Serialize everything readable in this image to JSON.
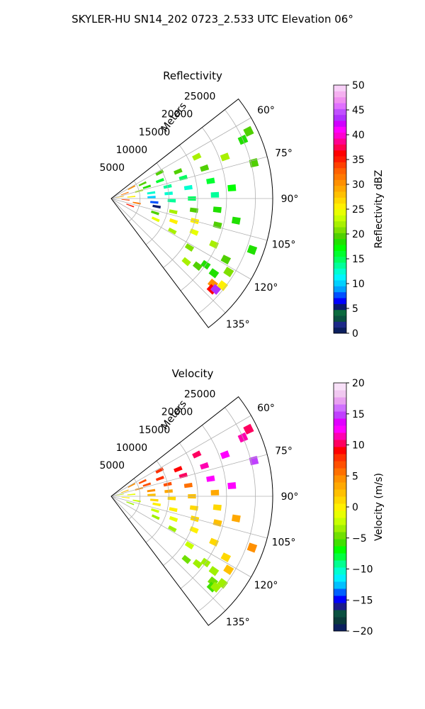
{
  "suptitle": "SKYLER-HU  SN14_202  0723_2.533 UTC Elevation 06°",
  "chart_data": [
    {
      "type": "heatmap",
      "projection": "polar-sector",
      "title": "Reflectivity",
      "radial_label": "Meters",
      "radial_ticks": [
        5000,
        10000,
        15000,
        20000,
        25000
      ],
      "radial_tick_labels": [
        "5000",
        "10000",
        "15000",
        "20000",
        "25000"
      ],
      "r_lim": [
        0,
        28000
      ],
      "theta_ticks": [
        60,
        75,
        90,
        105,
        120,
        135
      ],
      "theta_tick_labels": [
        "60°",
        "75°",
        "90°",
        "105°",
        "120°",
        "135°"
      ],
      "theta_lim": [
        52,
        143
      ],
      "grid": true,
      "colorbar": {
        "label": "Reflectivity dBZ",
        "range": [
          0,
          50
        ],
        "ticks": [
          0,
          5,
          10,
          15,
          20,
          25,
          30,
          35,
          40,
          45,
          50
        ],
        "tick_labels": [
          "0",
          "5",
          "10",
          "15",
          "20",
          "25",
          "30",
          "35",
          "40",
          "45",
          "50"
        ],
        "colors": [
          "#0b1f5e",
          "#1d2a88",
          "#0a5040",
          "#0b6a3e",
          "#0a1a6e",
          "#0000ff",
          "#0050ff",
          "#00a0ff",
          "#00d0ff",
          "#00f5ff",
          "#00ffd0",
          "#00ff9a",
          "#00ff60",
          "#00ff30",
          "#00ff00",
          "#20e000",
          "#50d000",
          "#80e000",
          "#a8f000",
          "#c8ff00",
          "#e8ff00",
          "#fff000",
          "#ffd800",
          "#ffc000",
          "#ffa800",
          "#ff9000",
          "#ff7800",
          "#ff6000",
          "#ff4000",
          "#ff1a00",
          "#ff0000",
          "#ff0050",
          "#ff0090",
          "#ff00d0",
          "#ff00ff",
          "#d000ff",
          "#b030ff",
          "#c050ff",
          "#e070ff",
          "#f090f0",
          "#f5b0f0",
          "#f8d0f8"
        ]
      },
      "gates": {
        "description_of_fields": "range_m, azimuth_deg, dbz",
        "points": [
          [
            1500,
            80,
            28
          ],
          [
            2500,
            70,
            32
          ],
          [
            2500,
            95,
            34
          ],
          [
            3500,
            85,
            26
          ],
          [
            3500,
            110,
            35
          ],
          [
            4000,
            62,
            30
          ],
          [
            4500,
            100,
            31
          ],
          [
            5000,
            75,
            22
          ],
          [
            6000,
            65,
            20
          ],
          [
            6500,
            72,
            18
          ],
          [
            7000,
            82,
            12
          ],
          [
            7000,
            88,
            10
          ],
          [
            7500,
            95,
            8
          ],
          [
            8000,
            100,
            5
          ],
          [
            8000,
            108,
            20
          ],
          [
            8500,
            115,
            24
          ],
          [
            9000,
            70,
            16
          ],
          [
            9500,
            62,
            20
          ],
          [
            10000,
            78,
            14
          ],
          [
            10000,
            85,
            12
          ],
          [
            10500,
            92,
            14
          ],
          [
            11000,
            102,
            22
          ],
          [
            11500,
            110,
            26
          ],
          [
            12000,
            118,
            22
          ],
          [
            12500,
            68,
            20
          ],
          [
            13000,
            74,
            15
          ],
          [
            13500,
            82,
            13
          ],
          [
            14000,
            90,
            15
          ],
          [
            14500,
            98,
            20
          ],
          [
            15000,
            105,
            25
          ],
          [
            15500,
            112,
            24
          ],
          [
            16000,
            122,
            21
          ],
          [
            16500,
            64,
            22
          ],
          [
            17000,
            72,
            20
          ],
          [
            17500,
            80,
            16
          ],
          [
            18000,
            88,
            14
          ],
          [
            18500,
            96,
            18
          ],
          [
            19000,
            104,
            20
          ],
          [
            19500,
            114,
            22
          ],
          [
            20000,
            125,
            19
          ],
          [
            21000,
            70,
            22
          ],
          [
            21000,
            85,
            17
          ],
          [
            22000,
            100,
            18
          ],
          [
            22500,
            118,
            20
          ],
          [
            23000,
            130,
            30
          ],
          [
            23500,
            132,
            36
          ],
          [
            24000,
            131,
            44
          ],
          [
            24500,
            128,
            26
          ],
          [
            25000,
            66,
            18
          ],
          [
            25500,
            76,
            20
          ],
          [
            26000,
            110,
            18
          ],
          [
            26500,
            64,
            20
          ],
          [
            24000,
            122,
            21
          ],
          [
            22000,
            126,
            18
          ],
          [
            19000,
            128,
            20
          ],
          [
            17000,
            130,
            22
          ]
        ]
      }
    },
    {
      "type": "heatmap",
      "projection": "polar-sector",
      "title": "Velocity",
      "radial_label": "Meters",
      "radial_ticks": [
        5000,
        10000,
        15000,
        20000,
        25000
      ],
      "radial_tick_labels": [
        "5000",
        "10000",
        "15000",
        "20000",
        "25000"
      ],
      "r_lim": [
        0,
        28000
      ],
      "theta_ticks": [
        60,
        75,
        90,
        105,
        120,
        135
      ],
      "theta_tick_labels": [
        "60°",
        "75°",
        "90°",
        "105°",
        "120°",
        "135°"
      ],
      "theta_lim": [
        52,
        143
      ],
      "grid": true,
      "colorbar": {
        "label": "Velocity (m/s)",
        "range": [
          -20,
          20
        ],
        "ticks": [
          -20,
          -15,
          -10,
          -5,
          0,
          5,
          10,
          15,
          20
        ],
        "tick_labels": [
          "−20",
          "−15",
          "−10",
          "−5",
          "0",
          "5",
          "10",
          "15",
          "20"
        ],
        "colors": [
          "#0b1f5e",
          "#0a3a3a",
          "#0a5040",
          "#1a1a8a",
          "#0000ff",
          "#0060ff",
          "#00c0ff",
          "#00f0ff",
          "#00ffd0",
          "#00ff90",
          "#00ff40",
          "#00ff00",
          "#40e000",
          "#70e000",
          "#9ff000",
          "#c8ff00",
          "#e8ff00",
          "#fff000",
          "#ffd800",
          "#ffc000",
          "#ffa800",
          "#ff9000",
          "#ff7000",
          "#ff5000",
          "#ff3000",
          "#ff0000",
          "#ff0060",
          "#ff00b0",
          "#ff00ff",
          "#e000ff",
          "#c040ff",
          "#d070ff",
          "#e8a0f0",
          "#f0c8f0",
          "#f8e0f8"
        ]
      },
      "gates": {
        "description_of_fields": "range_m, azimuth_deg, velocity_ms",
        "points": [
          [
            1500,
            80,
            -2
          ],
          [
            2500,
            70,
            2
          ],
          [
            2500,
            95,
            0
          ],
          [
            3500,
            85,
            -1
          ],
          [
            3500,
            110,
            -3
          ],
          [
            4000,
            62,
            5
          ],
          [
            4500,
            100,
            -2
          ],
          [
            5000,
            75,
            4
          ],
          [
            6000,
            65,
            7
          ],
          [
            6500,
            72,
            7
          ],
          [
            7000,
            82,
            4
          ],
          [
            7000,
            88,
            2
          ],
          [
            7500,
            95,
            1
          ],
          [
            8000,
            100,
            0
          ],
          [
            8000,
            108,
            -2
          ],
          [
            8500,
            115,
            -4
          ],
          [
            9000,
            70,
            8
          ],
          [
            9500,
            62,
            8
          ],
          [
            10000,
            78,
            7
          ],
          [
            10000,
            85,
            3
          ],
          [
            10500,
            92,
            1
          ],
          [
            11000,
            102,
            0
          ],
          [
            11500,
            110,
            -1
          ],
          [
            12000,
            118,
            -3
          ],
          [
            12500,
            68,
            9
          ],
          [
            13000,
            74,
            10
          ],
          [
            13500,
            82,
            6
          ],
          [
            14000,
            90,
            2
          ],
          [
            14500,
            98,
            1
          ],
          [
            15000,
            105,
            1
          ],
          [
            15500,
            112,
            0
          ],
          [
            16000,
            122,
            -2
          ],
          [
            16500,
            64,
            10
          ],
          [
            17000,
            72,
            11
          ],
          [
            17500,
            80,
            12
          ],
          [
            18000,
            88,
            3
          ],
          [
            18500,
            96,
            1
          ],
          [
            19000,
            104,
            2
          ],
          [
            19500,
            114,
            1
          ],
          [
            20000,
            125,
            -3
          ],
          [
            21000,
            70,
            13
          ],
          [
            21000,
            85,
            12
          ],
          [
            22000,
            100,
            3
          ],
          [
            22500,
            118,
            1
          ],
          [
            23000,
            130,
            -5
          ],
          [
            23500,
            132,
            -6
          ],
          [
            24000,
            131,
            -4
          ],
          [
            24500,
            128,
            -4
          ],
          [
            25000,
            66,
            11
          ],
          [
            25500,
            76,
            15
          ],
          [
            26000,
            110,
            4
          ],
          [
            26500,
            64,
            10
          ],
          [
            24000,
            122,
            2
          ],
          [
            22000,
            126,
            -3
          ],
          [
            19000,
            128,
            -4
          ],
          [
            17000,
            130,
            -5
          ]
        ]
      }
    }
  ]
}
